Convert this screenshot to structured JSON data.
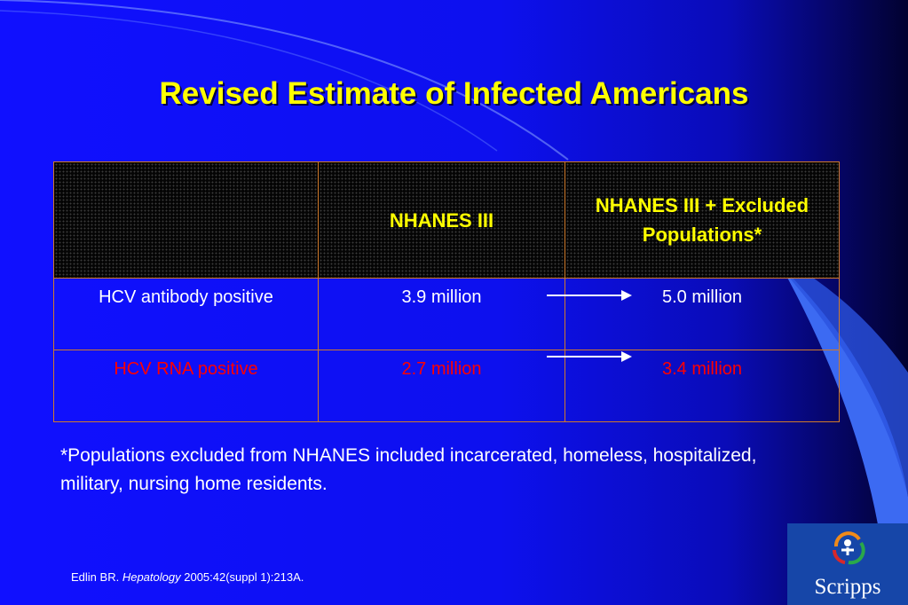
{
  "slide": {
    "title": "Revised Estimate of Infected Americans",
    "table": {
      "headers": [
        "",
        "NHANES III",
        "NHANES III + Excluded Populations*"
      ],
      "rows": [
        {
          "label": "HCV antibody positive",
          "value_nhanes": "3.9 million",
          "value_excluded": "5.0 million",
          "color": "#ffffff"
        },
        {
          "label": "HCV RNA positive",
          "value_nhanes": "2.7 million",
          "value_excluded": "3.4 million",
          "color": "#ff0000"
        }
      ]
    },
    "footnote": "*Populations excluded from NHANES included incarcerated, homeless, hospitalized, military, nursing home residents.",
    "citation": {
      "author": "Edlin BR.",
      "journal": "Hepatology",
      "details": "2005:42(suppl 1):213A."
    },
    "logo": {
      "name": "Scripps"
    }
  },
  "colors": {
    "background": "#1010ff",
    "title": "#ffff00",
    "highlight_row": "#ff0000",
    "table_border": "#d07a2a",
    "logo_bg": "#1646a8"
  }
}
